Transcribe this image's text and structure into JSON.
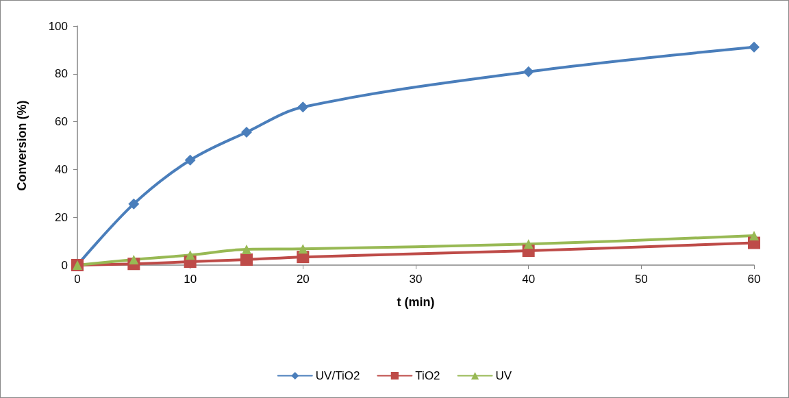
{
  "chart_data": {
    "type": "line",
    "xlabel": "t (min)",
    "ylabel": "Conversion (%)",
    "x": [
      0,
      5,
      10,
      15,
      20,
      40,
      60
    ],
    "series": [
      {
        "name": "UV/TiO2",
        "color": "#4a7ebb",
        "marker": "diamond",
        "values": [
          0,
          25.6,
          43.9,
          55.6,
          66.1,
          80.9,
          91.2
        ]
      },
      {
        "name": "TiO2",
        "color": "#be4b48",
        "marker": "square",
        "values": [
          0,
          0.5,
          1.4,
          2.3,
          3.4,
          6,
          9.3
        ]
      },
      {
        "name": "UV",
        "color": "#98b954",
        "marker": "triangle",
        "values": [
          0,
          2.3,
          4.2,
          6.6,
          6.8,
          8.8,
          12.3
        ]
      }
    ],
    "xlim": [
      0,
      60
    ],
    "xticks": [
      0,
      10,
      20,
      30,
      40,
      50,
      60
    ],
    "ylim": [
      0,
      100
    ],
    "yticks": [
      0,
      20,
      40,
      60,
      80,
      100
    ],
    "grid": false,
    "legend": "bottom",
    "line_style": "solid"
  }
}
